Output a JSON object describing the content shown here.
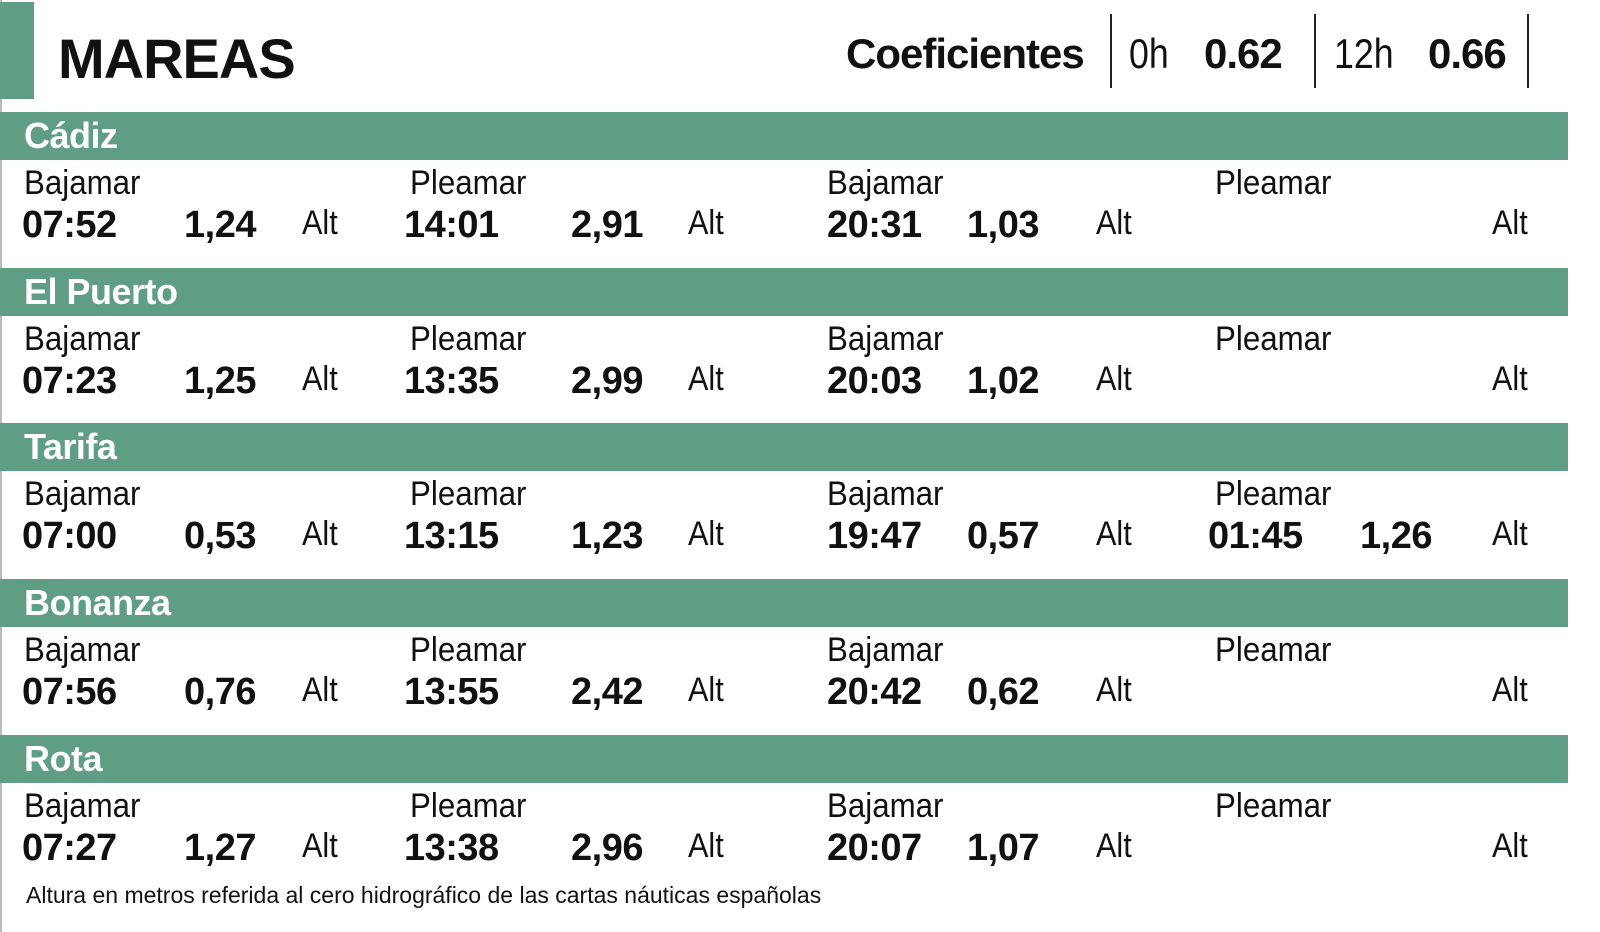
{
  "title": "MAREAS",
  "colors": {
    "accent": "#5f9e85"
  },
  "coefficients": {
    "label": "Coeficientes",
    "items": [
      {
        "hour": "0h",
        "value": "0.62"
      },
      {
        "hour": "12h",
        "value": "0.66"
      }
    ]
  },
  "alt_label": "Alt",
  "stations": [
    {
      "name": "Cádiz",
      "tides": [
        {
          "type": "Bajamar",
          "time": "07:52",
          "height": "1,24"
        },
        {
          "type": "Pleamar",
          "time": "14:01",
          "height": "2,91"
        },
        {
          "type": "Bajamar",
          "time": "20:31",
          "height": "1,03"
        },
        {
          "type": "Pleamar",
          "time": "",
          "height": ""
        }
      ]
    },
    {
      "name": "El Puerto",
      "tides": [
        {
          "type": "Bajamar",
          "time": "07:23",
          "height": "1,25"
        },
        {
          "type": "Pleamar",
          "time": "13:35",
          "height": "2,99"
        },
        {
          "type": "Bajamar",
          "time": "20:03",
          "height": "1,02"
        },
        {
          "type": "Pleamar",
          "time": "",
          "height": ""
        }
      ]
    },
    {
      "name": "Tarifa",
      "tides": [
        {
          "type": "Bajamar",
          "time": "07:00",
          "height": "0,53"
        },
        {
          "type": "Pleamar",
          "time": "13:15",
          "height": "1,23"
        },
        {
          "type": "Bajamar",
          "time": "19:47",
          "height": "0,57"
        },
        {
          "type": "Pleamar",
          "time": "01:45",
          "height": "1,26"
        }
      ]
    },
    {
      "name": "Bonanza",
      "tides": [
        {
          "type": "Bajamar",
          "time": "07:56",
          "height": "0,76"
        },
        {
          "type": "Pleamar",
          "time": "13:55",
          "height": "2,42"
        },
        {
          "type": "Bajamar",
          "time": "20:42",
          "height": "0,62"
        },
        {
          "type": "Pleamar",
          "time": "",
          "height": ""
        }
      ]
    },
    {
      "name": "Rota",
      "tides": [
        {
          "type": "Bajamar",
          "time": "07:27",
          "height": "1,27"
        },
        {
          "type": "Pleamar",
          "time": "13:38",
          "height": "2,96"
        },
        {
          "type": "Bajamar",
          "time": "20:07",
          "height": "1,07"
        },
        {
          "type": "Pleamar",
          "time": "",
          "height": ""
        }
      ]
    }
  ],
  "footnote": "Altura en metros referida al cero hidrográfico de las cartas náuticas españolas"
}
